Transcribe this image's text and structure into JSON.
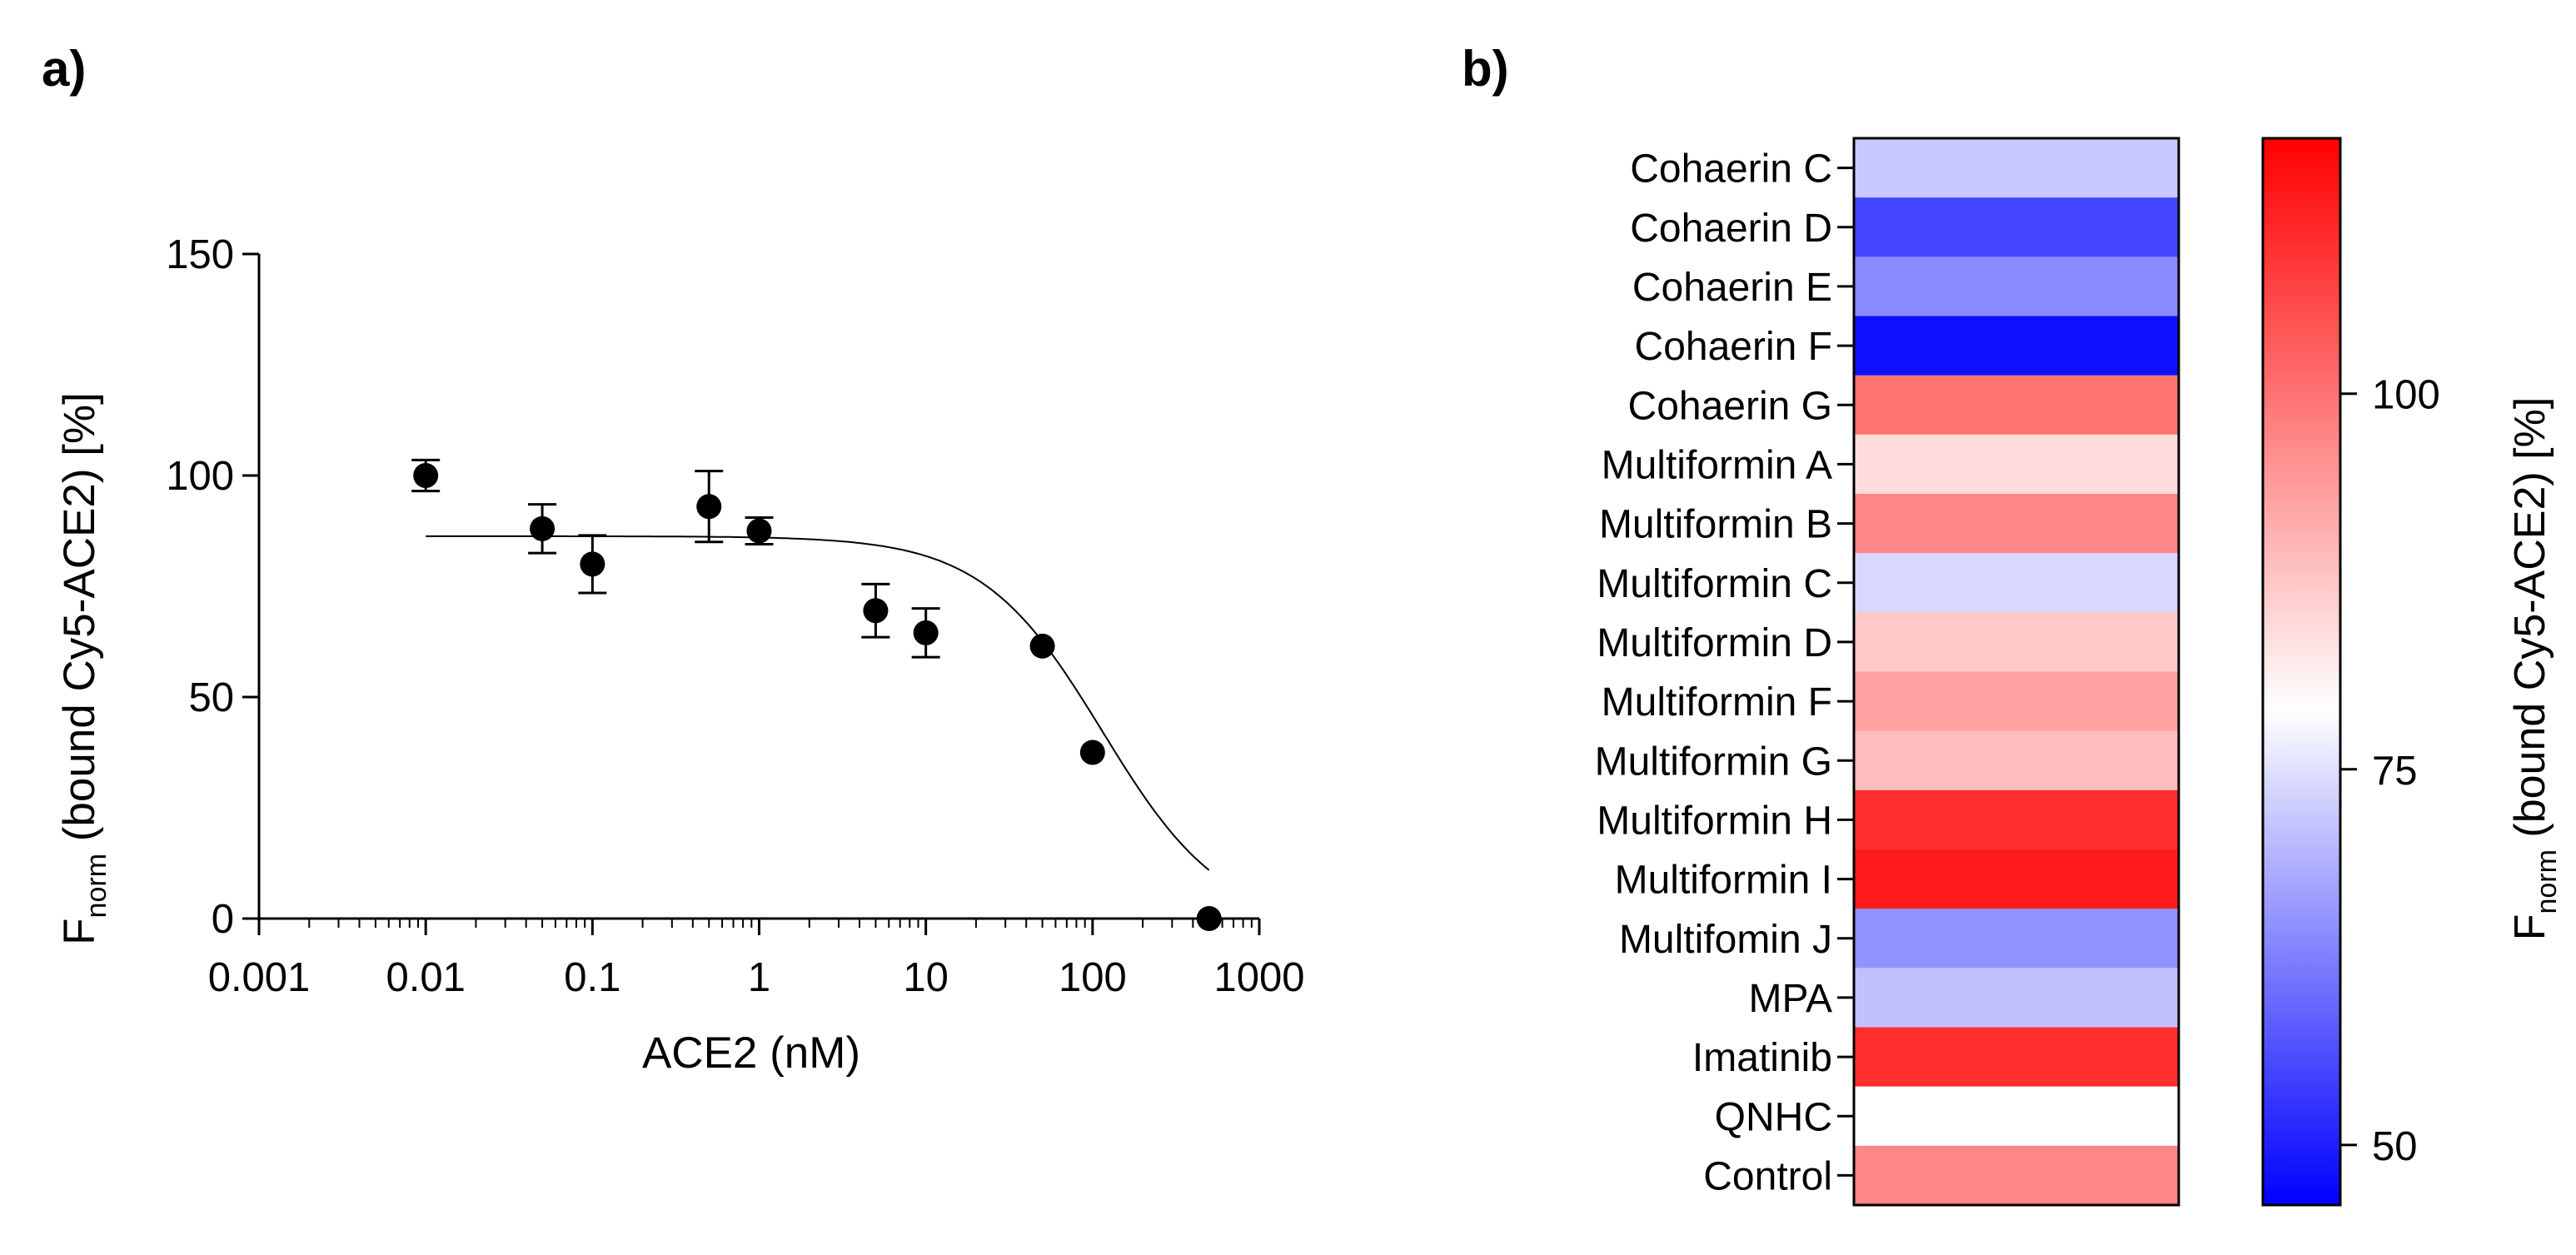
{
  "figure": {
    "panel_a_label": "a)",
    "panel_b_label": "b)"
  },
  "chart_data": [
    {
      "type": "scatter",
      "title": "",
      "xlabel": "ACE2 (nM)",
      "ylabel_main": "F",
      "ylabel_sub": "norm",
      "ylabel_rest": " (bound Cy5-ACE2) [%]",
      "xscale": "log",
      "xlim": [
        0.001,
        1000
      ],
      "ylim": [
        0,
        150
      ],
      "xticks": [
        0.001,
        0.01,
        0.1,
        1,
        10,
        100,
        1000
      ],
      "xtick_labels": [
        "0.001",
        "0.01",
        "0.1",
        "1",
        "10",
        "100",
        "1000"
      ],
      "yticks": [
        0,
        50,
        100,
        150
      ],
      "ytick_labels": [
        "0",
        "50",
        "100",
        "150"
      ],
      "points": [
        {
          "x": 0.01,
          "y": 100,
          "err": 3.5
        },
        {
          "x": 0.05,
          "y": 88,
          "err": 5.5
        },
        {
          "x": 0.1,
          "y": 80,
          "err": 6.5
        },
        {
          "x": 0.5,
          "y": 93,
          "err": 8
        },
        {
          "x": 1,
          "y": 87.5,
          "err": 3
        },
        {
          "x": 5,
          "y": 69.5,
          "err": 6
        },
        {
          "x": 10,
          "y": 64.5,
          "err": 5.5
        },
        {
          "x": 50,
          "y": 61.5,
          "err": 0
        },
        {
          "x": 100,
          "y": 37.5,
          "err": 0
        },
        {
          "x": 500,
          "y": 0,
          "err": 0
        }
      ],
      "fit": {
        "model": "4-parameter logistic",
        "top": 86.3,
        "bottom": -2,
        "ic50": 115,
        "hill": 1.2,
        "x_range": [
          0.01,
          500
        ]
      }
    },
    {
      "type": "heatmap",
      "rows": [
        "Cohaerin C",
        "Cohaerin D",
        "Cohaerin E",
        "Cohaerin F",
        "Cohaerin G",
        "Multiformin A",
        "Multiformin B",
        "Multiformin C",
        "Multiformin D",
        "Multiformin F",
        "Multiformin G",
        "Multiformin H",
        "Multiformin I",
        "Multifomin J",
        "MPA",
        "Imatinib",
        "QNHC",
        "Control"
      ],
      "values": [
        72,
        55,
        64,
        48,
        100,
        84,
        97,
        74,
        87,
        93,
        89,
        110,
        113,
        65,
        71,
        110,
        79,
        97
      ],
      "colorbar": {
        "min": 46,
        "max": 117,
        "center": 79,
        "low_color": "#0000ff",
        "mid_color": "#ffffff",
        "high_color": "#ff0000",
        "ticks": [
          50,
          75,
          100
        ],
        "tick_labels": [
          "50",
          "75",
          "100"
        ],
        "label_main": "F",
        "label_sub": "norm",
        "label_rest": " (bound Cy5-ACE2) [%]"
      }
    }
  ]
}
